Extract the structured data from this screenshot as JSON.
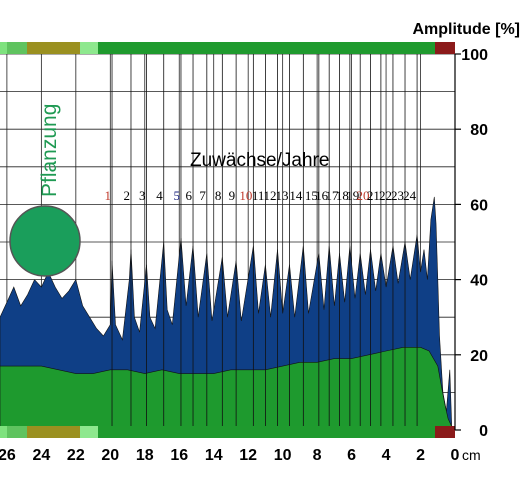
{
  "chart_data": {
    "type": "area",
    "ylabel": "Amplitude [%]",
    "ylim": [
      0,
      100
    ],
    "yticks": [
      "0",
      "20",
      "40",
      "60",
      "80",
      "100"
    ],
    "xunit": "cm",
    "xticks": [
      "26",
      "24",
      "22",
      "20",
      "18",
      "16",
      "14",
      "12",
      "10",
      "8",
      "6",
      "4",
      "2",
      "0"
    ],
    "xlim": [
      26.4,
      0
    ],
    "grid": true,
    "annotation": "Zuwächse/Jahre",
    "planting_label": "Pflanzung",
    "growth_years": [
      {
        "label": "1",
        "x": 19.9,
        "color": "#c0392b"
      },
      {
        "label": "2",
        "x": 18.8,
        "color": "#000000"
      },
      {
        "label": "3",
        "x": 17.9,
        "color": "#000000"
      },
      {
        "label": "4",
        "x": 16.9,
        "color": "#000000"
      },
      {
        "label": "5",
        "x": 15.9,
        "color": "#1a237e"
      },
      {
        "label": "6",
        "x": 15.2,
        "color": "#000000"
      },
      {
        "label": "7",
        "x": 14.4,
        "color": "#000000"
      },
      {
        "label": "8",
        "x": 13.5,
        "color": "#000000"
      },
      {
        "label": "9",
        "x": 12.7,
        "color": "#000000"
      },
      {
        "label": "10",
        "x": 11.7,
        "color": "#c0392b"
      },
      {
        "label": "11",
        "x": 11.0,
        "color": "#000000"
      },
      {
        "label": "12",
        "x": 10.3,
        "color": "#000000"
      },
      {
        "label": "13",
        "x": 9.6,
        "color": "#000000"
      },
      {
        "label": "14",
        "x": 8.8,
        "color": "#000000"
      },
      {
        "label": "15",
        "x": 7.9,
        "color": "#000000"
      },
      {
        "label": "16",
        "x": 7.3,
        "color": "#000000"
      },
      {
        "label": "17",
        "x": 6.7,
        "color": "#000000"
      },
      {
        "label": "18",
        "x": 6.1,
        "color": "#000000"
      },
      {
        "label": "19",
        "x": 5.5,
        "color": "#000000"
      },
      {
        "label": "20",
        "x": 4.9,
        "color": "#c0392b"
      },
      {
        "label": "21",
        "x": 4.3,
        "color": "#000000"
      },
      {
        "label": "22",
        "x": 3.6,
        "color": "#000000"
      },
      {
        "label": "23",
        "x": 2.9,
        "color": "#000000"
      },
      {
        "label": "24",
        "x": 2.2,
        "color": "#000000"
      }
    ],
    "series": [
      {
        "name": "",
        "color": "#0f3f86",
        "x": [
          26.4,
          26.0,
          25.6,
          25.2,
          24.8,
          24.4,
          24.0,
          23.6,
          23.2,
          22.8,
          22.4,
          22.0,
          21.6,
          21.2,
          20.8,
          20.4,
          20.0,
          19.9,
          19.7,
          19.3,
          18.9,
          18.8,
          18.6,
          18.3,
          17.9,
          17.7,
          17.4,
          16.9,
          16.7,
          16.4,
          15.9,
          15.6,
          15.2,
          14.9,
          14.4,
          14.1,
          13.5,
          13.2,
          12.7,
          12.4,
          11.7,
          11.4,
          11.0,
          10.7,
          10.3,
          10.0,
          9.6,
          9.3,
          8.8,
          8.5,
          7.9,
          7.6,
          7.3,
          7.0,
          6.7,
          6.4,
          6.1,
          5.8,
          5.5,
          5.2,
          4.9,
          4.6,
          4.3,
          4.0,
          3.6,
          3.3,
          2.9,
          2.6,
          2.2,
          2.0,
          1.8,
          1.6,
          1.4,
          1.2,
          1.1,
          1.0,
          0.9,
          0.7,
          0.5,
          0.3,
          0.2
        ],
        "values": [
          30,
          34,
          38,
          33,
          36,
          40,
          38,
          42,
          38,
          35,
          37,
          40,
          33,
          30,
          27,
          25,
          28,
          45,
          28,
          24,
          40,
          48,
          30,
          26,
          44,
          30,
          27,
          50,
          32,
          28,
          51,
          33,
          49,
          30,
          47,
          29,
          46,
          30,
          45,
          29,
          49,
          31,
          44,
          30,
          48,
          31,
          44,
          30,
          49,
          31,
          47,
          32,
          49,
          33,
          47,
          34,
          49,
          35,
          47,
          36,
          48,
          37,
          47,
          38,
          49,
          39,
          50,
          40,
          52,
          42,
          48,
          40,
          56,
          62,
          55,
          40,
          25,
          10,
          5,
          16,
          2
        ]
      },
      {
        "name": "",
        "color": "#1e9a2e",
        "x": [
          26.4,
          25.0,
          24.0,
          23.0,
          22.0,
          21.0,
          20.0,
          19.0,
          18.0,
          17.0,
          16.0,
          15.0,
          14.0,
          13.0,
          12.0,
          11.0,
          10.0,
          9.0,
          8.0,
          7.0,
          6.0,
          5.0,
          4.0,
          3.0,
          2.0,
          1.5,
          1.0,
          0.8,
          0.6,
          0.4,
          0.2
        ],
        "values": [
          17,
          17,
          17,
          16,
          15,
          15,
          16,
          16,
          15,
          16,
          15,
          15,
          15,
          16,
          16,
          16,
          17,
          18,
          18,
          19,
          19,
          20,
          21,
          22,
          22,
          21,
          17,
          12,
          7,
          3,
          1
        ]
      }
    ]
  }
}
